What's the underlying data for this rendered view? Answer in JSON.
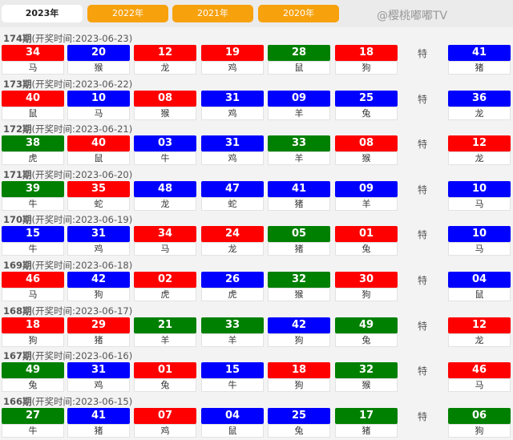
{
  "tabs": [
    "2023年",
    "2022年",
    "2021年",
    "2020年"
  ],
  "active_tab": "2023年",
  "time_label": "(开奖时间:",
  "special_label": "特",
  "watermark": "@樱桃嘟嘟TV",
  "colors": {
    "red": "#ff0000",
    "blue": "#0000ff",
    "green": "#008000",
    "tab_orange": "#f7a10d"
  },
  "draws": [
    {
      "issue": "174期",
      "date": "2023-06-23)",
      "balls": [
        [
          "34",
          "马",
          "red"
        ],
        [
          "20",
          "猴",
          "blue"
        ],
        [
          "12",
          "龙",
          "red"
        ],
        [
          "19",
          "鸡",
          "red"
        ],
        [
          "28",
          "鼠",
          "green"
        ],
        [
          "18",
          "狗",
          "red"
        ],
        [
          "41",
          "猪",
          "blue"
        ]
      ]
    },
    {
      "issue": "173期",
      "date": "2023-06-22)",
      "balls": [
        [
          "40",
          "鼠",
          "red"
        ],
        [
          "10",
          "马",
          "blue"
        ],
        [
          "08",
          "猴",
          "red"
        ],
        [
          "31",
          "鸡",
          "blue"
        ],
        [
          "09",
          "羊",
          "blue"
        ],
        [
          "25",
          "兔",
          "blue"
        ],
        [
          "36",
          "龙",
          "blue"
        ]
      ]
    },
    {
      "issue": "172期",
      "date": "2023-06-21)",
      "balls": [
        [
          "38",
          "虎",
          "green"
        ],
        [
          "40",
          "鼠",
          "red"
        ],
        [
          "03",
          "牛",
          "blue"
        ],
        [
          "31",
          "鸡",
          "blue"
        ],
        [
          "33",
          "羊",
          "green"
        ],
        [
          "08",
          "猴",
          "red"
        ],
        [
          "12",
          "龙",
          "red"
        ]
      ]
    },
    {
      "issue": "171期",
      "date": "2023-06-20)",
      "balls": [
        [
          "39",
          "牛",
          "green"
        ],
        [
          "35",
          "蛇",
          "red"
        ],
        [
          "48",
          "龙",
          "blue"
        ],
        [
          "47",
          "蛇",
          "blue"
        ],
        [
          "41",
          "猪",
          "blue"
        ],
        [
          "09",
          "羊",
          "blue"
        ],
        [
          "10",
          "马",
          "blue"
        ]
      ]
    },
    {
      "issue": "170期",
      "date": "2023-06-19)",
      "balls": [
        [
          "15",
          "牛",
          "blue"
        ],
        [
          "31",
          "鸡",
          "blue"
        ],
        [
          "34",
          "马",
          "red"
        ],
        [
          "24",
          "龙",
          "red"
        ],
        [
          "05",
          "猪",
          "green"
        ],
        [
          "01",
          "兔",
          "red"
        ],
        [
          "10",
          "马",
          "blue"
        ]
      ]
    },
    {
      "issue": "169期",
      "date": "2023-06-18)",
      "balls": [
        [
          "46",
          "马",
          "red"
        ],
        [
          "42",
          "狗",
          "blue"
        ],
        [
          "02",
          "虎",
          "red"
        ],
        [
          "26",
          "虎",
          "blue"
        ],
        [
          "32",
          "猴",
          "green"
        ],
        [
          "30",
          "狗",
          "red"
        ],
        [
          "04",
          "鼠",
          "blue"
        ]
      ]
    },
    {
      "issue": "168期",
      "date": "2023-06-17)",
      "balls": [
        [
          "18",
          "狗",
          "red"
        ],
        [
          "29",
          "猪",
          "red"
        ],
        [
          "21",
          "羊",
          "green"
        ],
        [
          "33",
          "羊",
          "green"
        ],
        [
          "42",
          "狗",
          "blue"
        ],
        [
          "49",
          "兔",
          "green"
        ],
        [
          "12",
          "龙",
          "red"
        ]
      ]
    },
    {
      "issue": "167期",
      "date": "2023-06-16)",
      "balls": [
        [
          "49",
          "兔",
          "green"
        ],
        [
          "31",
          "鸡",
          "blue"
        ],
        [
          "01",
          "兔",
          "red"
        ],
        [
          "15",
          "牛",
          "blue"
        ],
        [
          "18",
          "狗",
          "red"
        ],
        [
          "32",
          "猴",
          "green"
        ],
        [
          "46",
          "马",
          "red"
        ]
      ]
    },
    {
      "issue": "166期",
      "date": "2023-06-15)",
      "balls": [
        [
          "27",
          "牛",
          "green"
        ],
        [
          "41",
          "猪",
          "blue"
        ],
        [
          "07",
          "鸡",
          "red"
        ],
        [
          "04",
          "鼠",
          "blue"
        ],
        [
          "25",
          "兔",
          "blue"
        ],
        [
          "17",
          "猪",
          "green"
        ],
        [
          "06",
          "狗",
          "green"
        ]
      ]
    }
  ]
}
